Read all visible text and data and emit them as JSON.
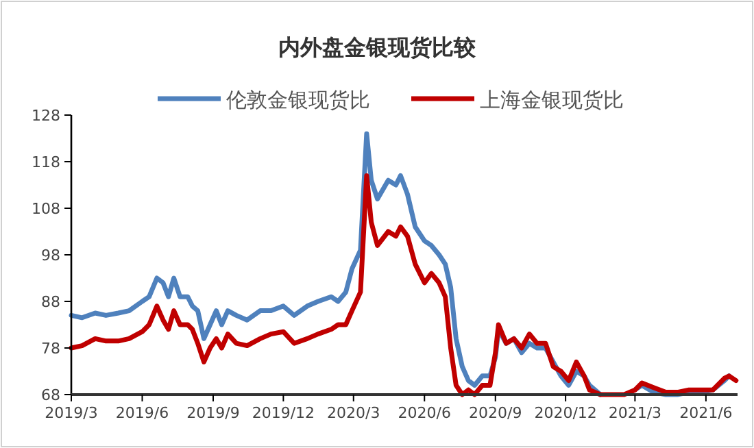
{
  "chart_data": {
    "type": "line",
    "title": "内外盘金银现货比较",
    "legend": "top",
    "line_style": "solid",
    "marker": "none",
    "grid": false,
    "x": [
      "2019-03-01",
      "2019-03-15",
      "2019-04-01",
      "2019-04-15",
      "2019-05-01",
      "2019-05-15",
      "2019-06-01",
      "2019-06-10",
      "2019-06-20",
      "2019-06-28",
      "2019-07-05",
      "2019-07-12",
      "2019-07-20",
      "2019-07-30",
      "2019-08-05",
      "2019-08-12",
      "2019-08-20",
      "2019-08-28",
      "2019-09-05",
      "2019-09-12",
      "2019-09-20",
      "2019-10-01",
      "2019-10-15",
      "2019-11-01",
      "2019-11-15",
      "2019-12-01",
      "2019-12-15",
      "2020-01-01",
      "2020-01-15",
      "2020-02-01",
      "2020-02-10",
      "2020-02-20",
      "2020-02-28",
      "2020-03-10",
      "2020-03-18",
      "2020-03-24",
      "2020-04-01",
      "2020-04-15",
      "2020-04-25",
      "2020-05-01",
      "2020-05-10",
      "2020-05-20",
      "2020-06-01",
      "2020-06-10",
      "2020-06-20",
      "2020-06-28",
      "2020-07-05",
      "2020-07-12",
      "2020-07-20",
      "2020-07-28",
      "2020-08-05",
      "2020-08-15",
      "2020-08-25",
      "2020-09-01",
      "2020-09-05",
      "2020-09-15",
      "2020-09-25",
      "2020-10-05",
      "2020-10-15",
      "2020-10-25",
      "2020-11-05",
      "2020-11-15",
      "2020-11-25",
      "2020-12-05",
      "2020-12-15",
      "2020-12-25",
      "2021-01-01",
      "2021-01-15",
      "2021-02-01",
      "2021-02-15",
      "2021-03-01",
      "2021-03-10",
      "2021-03-25",
      "2021-04-10",
      "2021-04-25",
      "2021-05-10",
      "2021-05-25",
      "2021-06-10",
      "2021-06-25",
      "2021-07-01",
      "2021-07-10"
    ],
    "series": [
      {
        "name": "伦敦金银现货比",
        "color": "#4f81bd",
        "values": [
          85,
          84.5,
          85.5,
          85,
          85.5,
          86,
          88,
          89,
          93,
          92,
          89,
          93,
          89,
          89,
          87,
          86,
          80,
          83,
          86,
          83,
          86,
          85,
          84,
          86,
          86,
          87,
          85,
          87,
          88,
          89,
          88,
          90,
          95,
          99,
          124,
          114,
          110,
          114,
          113,
          115,
          111,
          104,
          101,
          100,
          98,
          96,
          91,
          80,
          74,
          71,
          70,
          72,
          72,
          76,
          82,
          79,
          80,
          77,
          79,
          78,
          78,
          75,
          72,
          70,
          73,
          72,
          70,
          68,
          null,
          null,
          69,
          70,
          68.5,
          68,
          68,
          68.5,
          68.5,
          69,
          71,
          72,
          null
        ]
      },
      {
        "name": "上海金银现货比",
        "color": "#c00000",
        "values": [
          78,
          78.5,
          80,
          79.5,
          79.5,
          80,
          81.5,
          83,
          87,
          84,
          82,
          86,
          83,
          83,
          82,
          79,
          75,
          78,
          80,
          78,
          81,
          79,
          78.5,
          80,
          81,
          81.5,
          79,
          80,
          81,
          82,
          83,
          83,
          86,
          90,
          115,
          105,
          100,
          103,
          102,
          104,
          102,
          96,
          92,
          94,
          92,
          89,
          78,
          70,
          68,
          69,
          68,
          70,
          70,
          77,
          83,
          79,
          80,
          78,
          81,
          79,
          79,
          74,
          73,
          71,
          75,
          72,
          69,
          68,
          68,
          68,
          69,
          70.5,
          69.5,
          68.5,
          68.5,
          69,
          69,
          69,
          71.5,
          72,
          71
        ]
      }
    ],
    "xlim": [
      "2019-03-01",
      "2021-07-12"
    ],
    "xticks": [
      {
        "value": "2019-03-01",
        "label": "2019/3"
      },
      {
        "value": "2019-06-01",
        "label": "2019/6"
      },
      {
        "value": "2019-09-01",
        "label": "2019/9"
      },
      {
        "value": "2019-12-01",
        "label": "2019/12"
      },
      {
        "value": "2020-03-01",
        "label": "2020/3"
      },
      {
        "value": "2020-06-01",
        "label": "2020/6"
      },
      {
        "value": "2020-09-01",
        "label": "2020/9"
      },
      {
        "value": "2020-12-01",
        "label": "2020/12"
      },
      {
        "value": "2021-03-01",
        "label": "2021/3"
      },
      {
        "value": "2021-06-01",
        "label": "2021/6"
      }
    ],
    "ylim": [
      68,
      128
    ],
    "yticks": [
      68,
      78,
      88,
      98,
      108,
      118,
      128
    ]
  }
}
